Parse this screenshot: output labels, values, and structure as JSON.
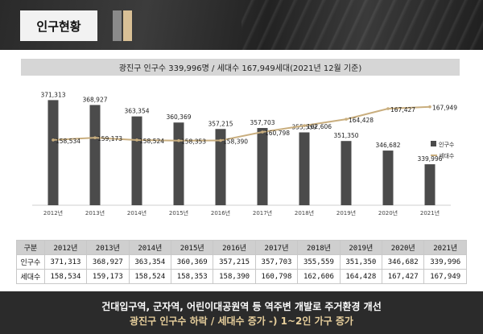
{
  "header": {
    "title": "인구현황"
  },
  "chart_title": "광진구 인구수 339,996명 / 세대수 167,949세대(2021년 12월 기준)",
  "colors": {
    "bar": "#4b4b4b",
    "line": "#c9ae7e"
  },
  "chart_data": {
    "type": "bar+line",
    "title": "광진구 인구수 339,996명 / 세대수 167,949세대(2021년 12월 기준)",
    "categories": [
      "2012년",
      "2013년",
      "2014년",
      "2015년",
      "2016년",
      "2017년",
      "2018년",
      "2019년",
      "2020년",
      "2021년"
    ],
    "series": [
      {
        "name": "인구수",
        "type": "bar",
        "values": [
          371313,
          368927,
          363354,
          360369,
          357215,
          357703,
          355559,
          351350,
          346682,
          339996
        ],
        "labels": [
          "371,313",
          "368,927",
          "363,354",
          "360,369",
          "357,215",
          "357,703",
          "355,559",
          "351,350",
          "346,682",
          "339,996"
        ]
      },
      {
        "name": "세대수",
        "type": "line",
        "values": [
          158534,
          159173,
          158524,
          158353,
          158390,
          160798,
          162606,
          164428,
          167427,
          167949
        ],
        "labels": [
          "158,534",
          "159,173",
          "158,524",
          "158,353",
          "158,390",
          "160,798",
          "162,606",
          "164,428",
          "167,427",
          "167,949"
        ]
      }
    ],
    "bar_ylim": [
      320000,
      375000
    ],
    "line_ylim": [
      140000,
      172000
    ],
    "legend": "right"
  },
  "table": {
    "header": [
      "구분",
      "2012년",
      "2013년",
      "2014년",
      "2015년",
      "2016년",
      "2017년",
      "2018년",
      "2019년",
      "2020년",
      "2021년"
    ],
    "rows": [
      [
        "인구수",
        "371,313",
        "368,927",
        "363,354",
        "360,369",
        "357,215",
        "357,703",
        "355,559",
        "351,350",
        "346,682",
        "339,996"
      ],
      [
        "세대수",
        "158,534",
        "159,173",
        "158,524",
        "158,353",
        "158,390",
        "160,798",
        "162,606",
        "164,428",
        "167,427",
        "167,949"
      ]
    ]
  },
  "bottom": {
    "line1": "건대입구역, 군자역, 어린이대공원역 등 역주변 개발로 주거환경 개선",
    "line2": "광진구 인구수 하락 / 세대수 증가 -) 1~2인 가구 증가"
  }
}
